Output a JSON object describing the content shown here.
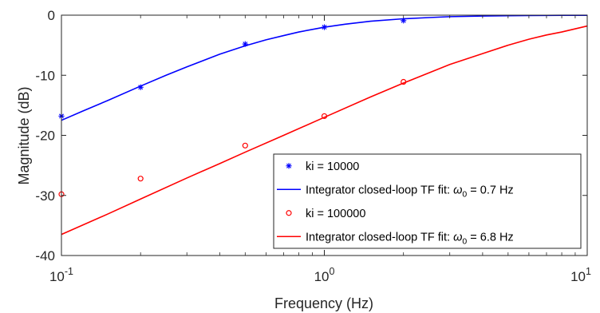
{
  "chart_data": {
    "type": "line",
    "xlabel": "Frequency (Hz)",
    "ylabel": "Magnitude (dB)",
    "xscale": "log",
    "xlim": [
      0.1,
      10
    ],
    "ylim": [
      -40,
      0
    ],
    "x_ticks": [
      {
        "value": 0.1,
        "base": "10",
        "exp": "-1"
      },
      {
        "value": 1,
        "base": "10",
        "exp": "0"
      },
      {
        "value": 10,
        "base": "10",
        "exp": "1"
      }
    ],
    "y_ticks": [
      {
        "value": 0,
        "label": "0"
      },
      {
        "value": -10,
        "label": "-10"
      },
      {
        "value": -20,
        "label": "-20"
      },
      {
        "value": -30,
        "label": "-30"
      },
      {
        "value": -40,
        "label": "-40"
      }
    ],
    "grid": false,
    "legend_position": "bottom-right",
    "series": [
      {
        "name": "ki = 10000",
        "kind": "scatter",
        "marker": "asterisk",
        "color": "#0000ff",
        "x": [
          0.1,
          0.2,
          0.5,
          1,
          2
        ],
        "y": [
          -16.8,
          -12.0,
          -4.8,
          -2.0,
          -0.9
        ]
      },
      {
        "name_prefix": "Integrator closed-loop TF fit: ",
        "name_symbol": "ω",
        "name_subscript": "0",
        "name_suffix": " = 0.7 Hz",
        "kind": "line",
        "color": "#0000ff",
        "x": [
          0.1,
          0.12,
          0.15,
          0.2,
          0.25,
          0.3,
          0.4,
          0.5,
          0.6,
          0.7,
          0.8,
          1,
          1.2,
          1.5,
          2,
          2.5,
          3,
          4,
          5,
          6,
          7,
          8,
          10
        ],
        "y": [
          -17.5,
          -16.0,
          -14.2,
          -11.8,
          -10.0,
          -8.6,
          -6.5,
          -5.1,
          -4.1,
          -3.4,
          -2.8,
          -2.0,
          -1.5,
          -1.0,
          -0.6,
          -0.4,
          -0.25,
          -0.15,
          -0.09,
          -0.06,
          -0.04,
          -0.03,
          -0.02
        ]
      },
      {
        "name": "ki = 100000",
        "kind": "scatter",
        "marker": "circle",
        "color": "#ff0000",
        "x": [
          0.1,
          0.2,
          0.5,
          1,
          2
        ],
        "y": [
          -29.8,
          -27.2,
          -21.7,
          -16.8,
          -11.1
        ]
      },
      {
        "name_prefix": "Integrator closed-loop TF fit: ",
        "name_symbol": "ω",
        "name_subscript": "0",
        "name_suffix": " = 6.8 Hz",
        "kind": "line",
        "color": "#ff0000",
        "x": [
          0.1,
          0.15,
          0.2,
          0.3,
          0.4,
          0.5,
          0.7,
          1,
          1.5,
          2,
          3,
          4,
          5,
          6,
          7,
          8,
          10
        ],
        "y": [
          -36.5,
          -33.1,
          -30.6,
          -27.1,
          -24.7,
          -22.8,
          -20.0,
          -17.0,
          -13.6,
          -11.3,
          -8.2,
          -6.4,
          -5.0,
          -4.0,
          -3.3,
          -2.8,
          -1.8
        ]
      }
    ]
  }
}
